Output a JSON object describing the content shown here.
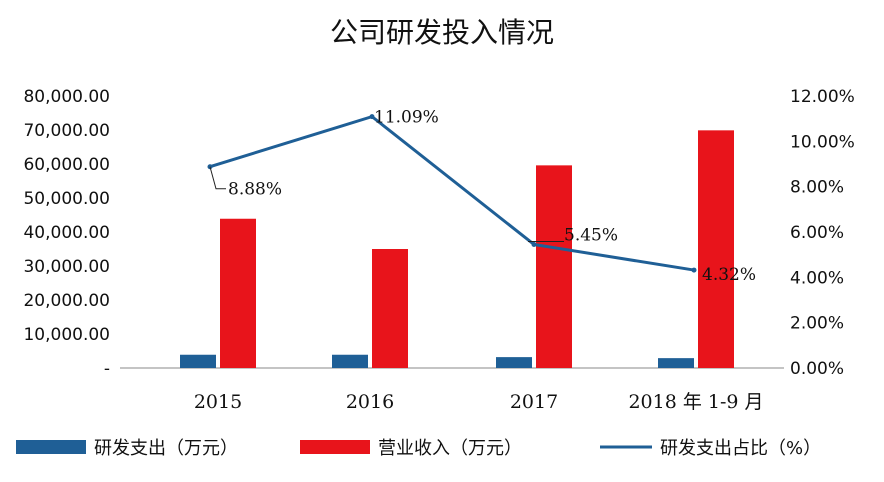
{
  "chart_data": {
    "type": "bar",
    "title": "公司研发投入情况",
    "categories": [
      "2015",
      "2016",
      "2017",
      "2018 年 1-9 月"
    ],
    "series": [
      {
        "name": "研发支出（万元）",
        "kind": "bar",
        "axis": "left",
        "color": "#1f5f96",
        "values": [
          3900,
          3900,
          3200,
          2900
        ]
      },
      {
        "name": "营业收入（万元）",
        "kind": "bar",
        "axis": "left",
        "color": "#e8141b",
        "values": [
          43900,
          35000,
          59600,
          69900
        ]
      },
      {
        "name": "研发支出占比（%）",
        "kind": "line",
        "axis": "right",
        "color": "#1f5f96",
        "values": [
          8.88,
          11.09,
          5.45,
          4.32
        ],
        "labels": [
          "8.88%",
          "11.09%",
          "5.45%",
          "4.32%"
        ]
      }
    ],
    "y_left": {
      "ylim": [
        0,
        80000
      ],
      "ticks": [
        "-",
        "10,000.00",
        "20,000.00",
        "30,000.00",
        "40,000.00",
        "50,000.00",
        "60,000.00",
        "70,000.00",
        "80,000.00"
      ]
    },
    "y_right": {
      "ylim": [
        0,
        12
      ],
      "ticks": [
        "0.00%",
        "2.00%",
        "4.00%",
        "6.00%",
        "8.00%",
        "10.00%",
        "12.00%"
      ]
    },
    "grid": false,
    "legend_position": "bottom"
  }
}
